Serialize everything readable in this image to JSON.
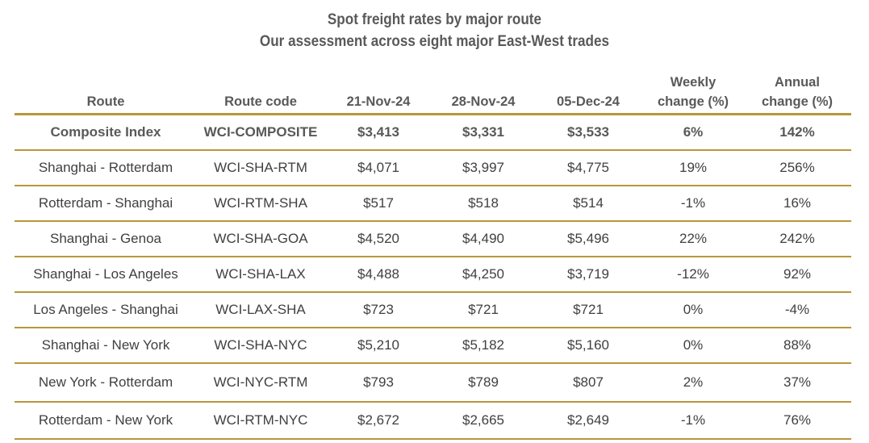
{
  "chart_data": {
    "type": "table",
    "title": "Spot freight rates by major route",
    "subtitle": "Our assessment across eight major East-West trades",
    "columns": [
      "Route",
      "Route code",
      "21-Nov-24",
      "28-Nov-24",
      "05-Dec-24",
      "Weekly\nchange (%)",
      "Annual\nchange (%)"
    ],
    "rows": [
      [
        "Composite Index",
        "WCI-COMPOSITE",
        "$3,413",
        "$3,331",
        "$3,533",
        "6%",
        "142%"
      ],
      [
        "Shanghai - Rotterdam",
        "WCI-SHA-RTM",
        "$4,071",
        "$3,997",
        "$4,775",
        "19%",
        "256%"
      ],
      [
        "Rotterdam - Shanghai",
        "WCI-RTM-SHA",
        "$517",
        "$518",
        "$514",
        "-1%",
        "16%"
      ],
      [
        "Shanghai - Genoa",
        "WCI-SHA-GOA",
        "$4,520",
        "$4,490",
        "$5,496",
        "22%",
        "242%"
      ],
      [
        "Shanghai - Los Angeles",
        "WCI-SHA-LAX",
        "$4,488",
        "$4,250",
        "$3,719",
        "-12%",
        "92%"
      ],
      [
        "Los Angeles - Shanghai",
        "WCI-LAX-SHA",
        "$723",
        "$721",
        "$721",
        "0%",
        "-4%"
      ],
      [
        "Shanghai - New York",
        "WCI-SHA-NYC",
        "$5,210",
        "$5,182",
        "$5,160",
        "0%",
        "88%"
      ],
      [
        "New York - Rotterdam",
        "WCI-NYC-RTM",
        "$793",
        "$789",
        "$807",
        "2%",
        "37%"
      ],
      [
        "Rotterdam - New York",
        "WCI-RTM-NYC",
        "$2,672",
        "$2,665",
        "$2,649",
        "-1%",
        "76%"
      ]
    ],
    "bold_rows": [
      0
    ],
    "rule_color": "#b8963a"
  }
}
